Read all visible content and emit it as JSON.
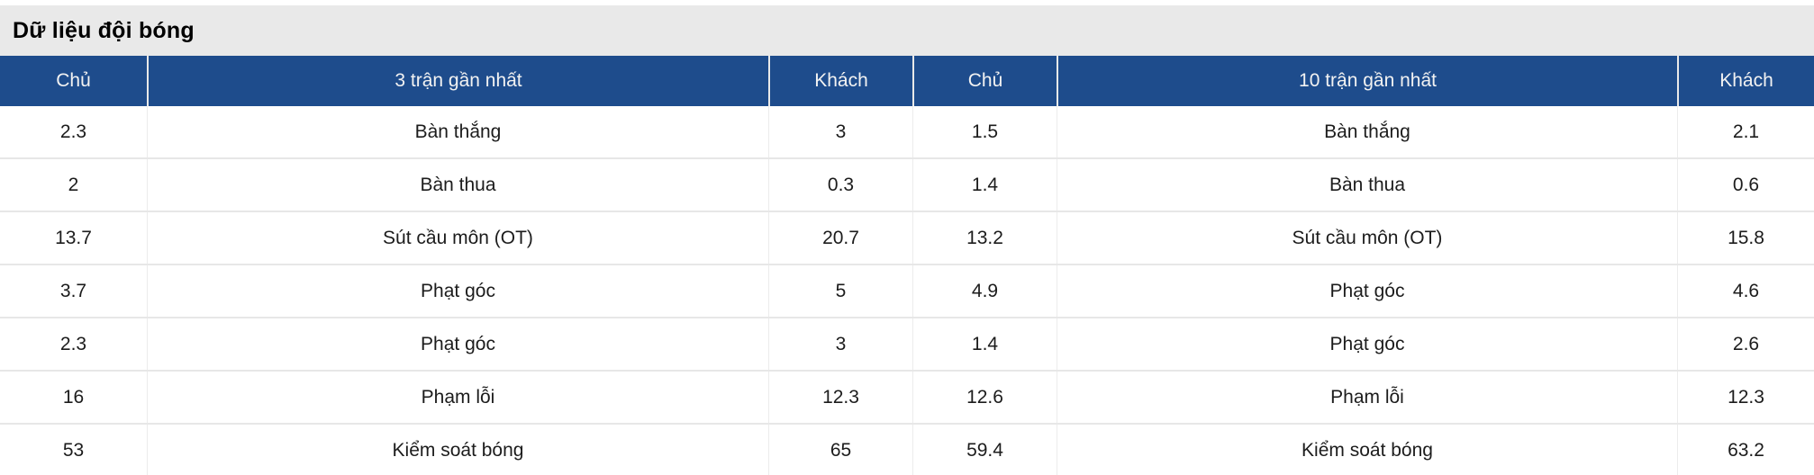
{
  "title": "Dữ liệu đội bóng",
  "colors": {
    "header_bg": "#1e4c8c",
    "header_text": "#f2f2f2",
    "title_bg": "#e9e9e9",
    "row_border": "#e7e7e7",
    "cell_border": "#ececec",
    "body_text": "#1c1c1c"
  },
  "table": {
    "headers": [
      "Chủ",
      "3 trận gần nhất",
      "Khách",
      "Chủ",
      "10 trận gần nhất",
      "Khách"
    ],
    "rows": [
      [
        "2.3",
        "Bàn thắng",
        "3",
        "1.5",
        "Bàn thắng",
        "2.1"
      ],
      [
        "2",
        "Bàn thua",
        "0.3",
        "1.4",
        "Bàn thua",
        "0.6"
      ],
      [
        "13.7",
        "Sút cầu môn (OT)",
        "20.7",
        "13.2",
        "Sút cầu môn (OT)",
        "15.8"
      ],
      [
        "3.7",
        "Phạt góc",
        "5",
        "4.9",
        "Phạt góc",
        "4.6"
      ],
      [
        "2.3",
        "Phạt góc",
        "3",
        "1.4",
        "Phạt góc",
        "2.6"
      ],
      [
        "16",
        "Phạm lỗi",
        "12.3",
        "12.6",
        "Phạm lỗi",
        "12.3"
      ],
      [
        "53",
        "Kiểm soát bóng",
        "65",
        "59.4",
        "Kiểm soát bóng",
        "63.2"
      ]
    ]
  }
}
